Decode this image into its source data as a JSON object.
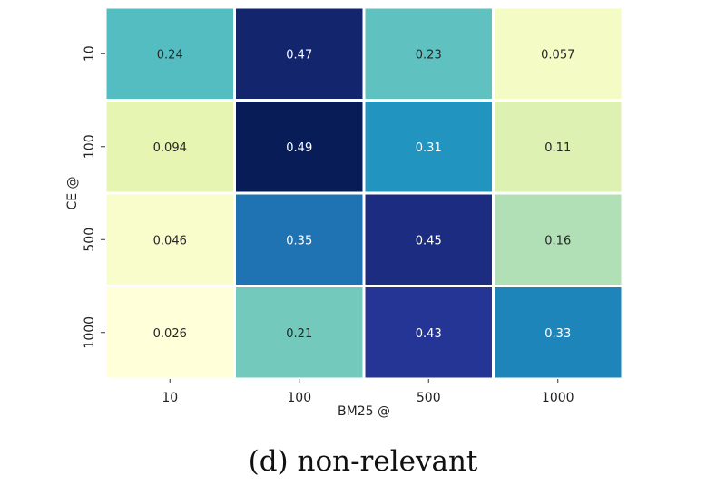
{
  "caption": "(d) non-relevant",
  "chart_data": {
    "type": "heatmap",
    "xlabel": "BM25 @",
    "ylabel": "CE @",
    "x_categories": [
      "10",
      "100",
      "500",
      "1000"
    ],
    "y_categories": [
      "10",
      "100",
      "500",
      "1000"
    ],
    "values": [
      [
        0.24,
        0.47,
        0.23,
        0.057
      ],
      [
        0.094,
        0.49,
        0.31,
        0.11
      ],
      [
        0.046,
        0.35,
        0.45,
        0.16
      ],
      [
        0.026,
        0.21,
        0.43,
        0.33
      ]
    ],
    "value_labels": [
      [
        "0.24",
        "0.47",
        "0.23",
        "0.057"
      ],
      [
        "0.094",
        "0.49",
        "0.31",
        "0.11"
      ],
      [
        "0.046",
        "0.35",
        "0.45",
        "0.16"
      ],
      [
        "0.026",
        "0.21",
        "0.43",
        "0.33"
      ]
    ],
    "colormap": "YlGnBu",
    "vmin": 0.026,
    "vmax": 0.49,
    "grid": true,
    "colorbar": false
  }
}
